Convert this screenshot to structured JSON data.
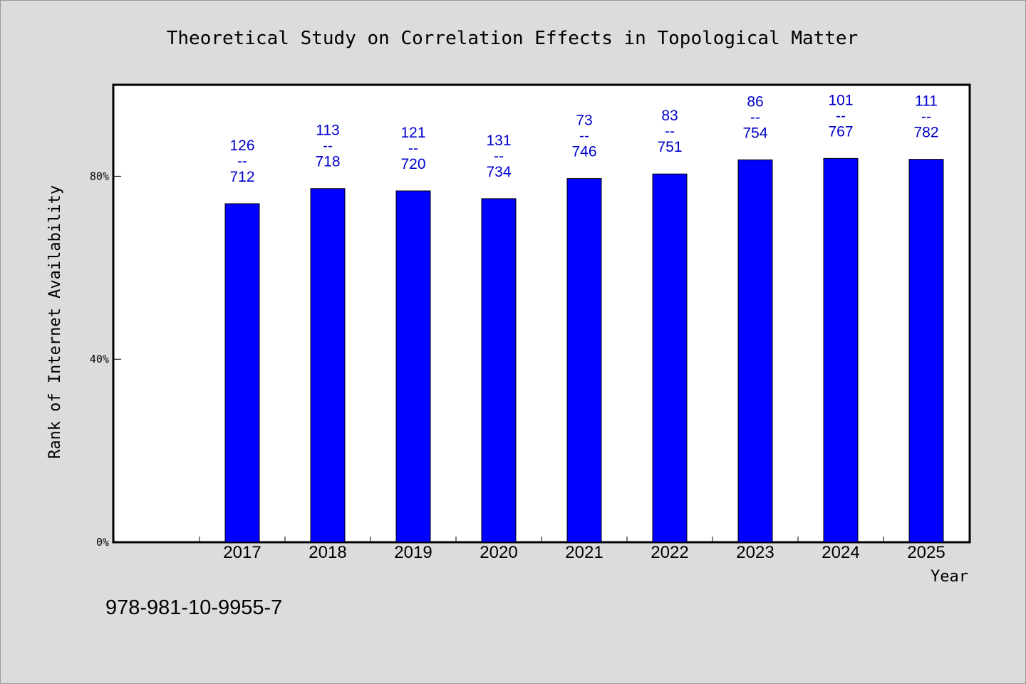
{
  "chart_data": {
    "type": "bar",
    "title": "Theoretical Study on Correlation Effects in Topological Matter",
    "xlabel": "Year",
    "ylabel": "Rank of Internet Availability",
    "categories": [
      "2017",
      "2018",
      "2019",
      "2020",
      "2021",
      "2022",
      "2023",
      "2024",
      "2025"
    ],
    "series": [
      {
        "values": [
          74,
          77.3,
          76.8,
          75.1,
          79.5,
          80.5,
          83.6,
          83.9,
          83.7
        ],
        "labels_top": [
          "126",
          "113",
          "121",
          "131",
          "73",
          "83",
          "86",
          "101",
          "111"
        ],
        "labels_sep": [
          "--",
          "--",
          "--",
          "--",
          "--",
          "--",
          "--",
          "--",
          "--"
        ],
        "labels_bottom": [
          "712",
          "718",
          "720",
          "734",
          "746",
          "751",
          "754",
          "767",
          "782"
        ],
        "color": "#0000ff"
      }
    ],
    "ylim": [
      0,
      100
    ],
    "yticks": [
      0,
      40,
      80
    ],
    "ytick_labels": [
      "0%",
      "40%",
      "80%"
    ],
    "grid": false,
    "legend": "none"
  },
  "footer": {
    "isbn": "978-981-10-9955-7"
  },
  "colors": {
    "background": "#dcdcdc",
    "plot_area": "#ffffff",
    "bar": "#0000ff",
    "data_label": "#0000cc"
  }
}
